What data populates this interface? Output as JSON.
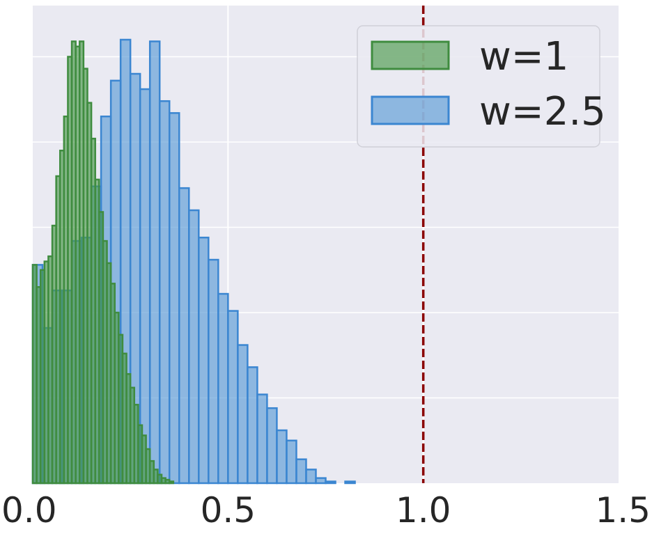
{
  "chart_data": {
    "type": "bar",
    "x_ticks": [
      "0.0",
      "0.5",
      "1.0",
      "1.5"
    ],
    "x_tick_values": [
      0.0,
      0.5,
      1.0,
      1.5
    ],
    "xlim": [
      0.0,
      1.5
    ],
    "ylim": [
      0,
      28
    ],
    "grid": true,
    "y_tick_values": [
      5,
      10,
      15,
      20,
      25
    ],
    "legend_placement": "top-right",
    "reference_line": {
      "x": 1.0,
      "color": "#8b0000",
      "style": "dashed"
    },
    "colors": {
      "background": "#eaeaf2",
      "grid": "#ffffff",
      "text": "#262626"
    },
    "series": [
      {
        "name": "w=1",
        "fill": "#4c9a4c",
        "edge": "#3f8c3f",
        "alpha": 0.65,
        "bin_width": 0.01,
        "bins": [
          [
            0.0,
            12.8
          ],
          [
            0.01,
            11.5
          ],
          [
            0.02,
            12.5
          ],
          [
            0.03,
            13.0
          ],
          [
            0.04,
            13.3
          ],
          [
            0.05,
            15.1
          ],
          [
            0.06,
            18.0
          ],
          [
            0.07,
            19.5
          ],
          [
            0.08,
            21.5
          ],
          [
            0.09,
            25.0
          ],
          [
            0.1,
            25.9
          ],
          [
            0.11,
            25.6
          ],
          [
            0.12,
            25.9
          ],
          [
            0.13,
            24.3
          ],
          [
            0.14,
            22.3
          ],
          [
            0.15,
            20.2
          ],
          [
            0.16,
            17.8
          ],
          [
            0.17,
            15.9
          ],
          [
            0.18,
            14.2
          ],
          [
            0.19,
            12.9
          ],
          [
            0.2,
            11.7
          ],
          [
            0.21,
            10.0
          ],
          [
            0.22,
            8.7
          ],
          [
            0.23,
            7.6
          ],
          [
            0.24,
            6.4
          ],
          [
            0.25,
            5.6
          ],
          [
            0.26,
            4.6
          ],
          [
            0.27,
            3.4
          ],
          [
            0.28,
            2.8
          ],
          [
            0.29,
            2.0
          ],
          [
            0.3,
            1.3
          ],
          [
            0.31,
            0.8
          ],
          [
            0.32,
            0.5
          ],
          [
            0.33,
            0.3
          ],
          [
            0.34,
            0.2
          ],
          [
            0.35,
            0.1
          ]
        ]
      },
      {
        "name": "w=2.5",
        "fill": "#5b9bd5",
        "edge": "#3b86d1",
        "alpha": 0.65,
        "bin_width": 0.025,
        "bins": [
          [
            0.0,
            12.8
          ],
          [
            0.025,
            9.1
          ],
          [
            0.05,
            11.3
          ],
          [
            0.075,
            11.3
          ],
          [
            0.1,
            14.2
          ],
          [
            0.125,
            14.4
          ],
          [
            0.15,
            17.4
          ],
          [
            0.175,
            21.5
          ],
          [
            0.2,
            23.6
          ],
          [
            0.225,
            26.0
          ],
          [
            0.25,
            24.0
          ],
          [
            0.275,
            23.1
          ],
          [
            0.3,
            25.9
          ],
          [
            0.325,
            22.4
          ],
          [
            0.35,
            21.7
          ],
          [
            0.375,
            17.3
          ],
          [
            0.4,
            16.0
          ],
          [
            0.425,
            14.4
          ],
          [
            0.45,
            13.1
          ],
          [
            0.475,
            11.1
          ],
          [
            0.5,
            10.1
          ],
          [
            0.525,
            8.1
          ],
          [
            0.55,
            6.8
          ],
          [
            0.575,
            5.2
          ],
          [
            0.6,
            4.4
          ],
          [
            0.625,
            3.1
          ],
          [
            0.65,
            2.5
          ],
          [
            0.675,
            1.4
          ],
          [
            0.7,
            0.8
          ],
          [
            0.725,
            0.3
          ],
          [
            0.75,
            0.1
          ],
          [
            0.775,
            0.0
          ],
          [
            0.8,
            0.1
          ],
          [
            0.825,
            0.0
          ],
          [
            0.85,
            0.0
          ]
        ]
      }
    ]
  }
}
